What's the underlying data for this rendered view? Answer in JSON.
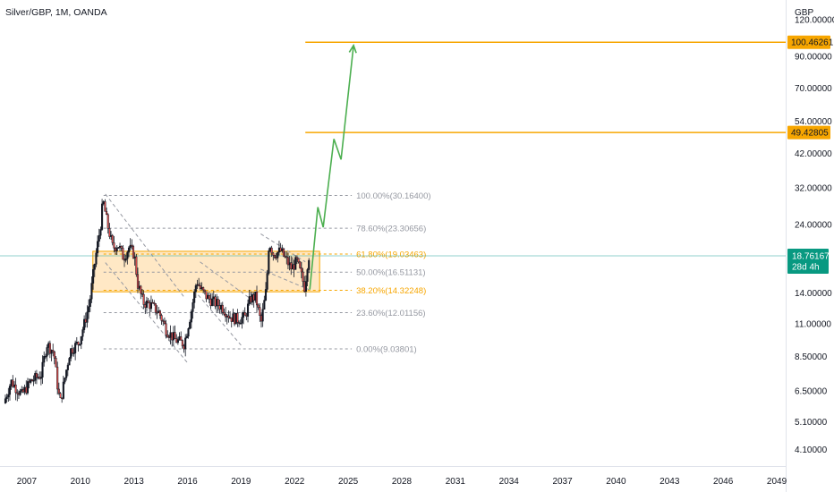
{
  "header": {
    "title": "Silver/GBP, 1M, OANDA"
  },
  "colors": {
    "up": "#26a69a",
    "down": "#ef5350",
    "wick": "#131722",
    "fib_gray": "#9598a1",
    "fib_orange": "#f7a600",
    "zone_fill": "#ffe0b2",
    "zone_border": "#f7a600",
    "target_line": "#f7a600",
    "projection": "#4caf50",
    "price_tag_bg": "#089981",
    "channel": "#9598a1"
  },
  "chart_data": {
    "type": "candlestick",
    "title": "Silver/GBP, 1M, OANDA",
    "y_axis": {
      "currency_label": "GBP",
      "scale": "log",
      "range": [
        3.6,
        140
      ],
      "ticks": [
        "120.00000",
        "90.00000",
        "70.00000",
        "54.00000",
        "42.00000",
        "32.00000",
        "24.00000",
        "18.76167",
        "14.00000",
        "11.00000",
        "8.50000",
        "6.50000",
        "5.10000",
        "4.10000"
      ],
      "tick_values": [
        120,
        90,
        70,
        54,
        42,
        32,
        24,
        18.76167,
        14,
        11,
        8.5,
        6.5,
        5.1,
        4.1
      ]
    },
    "x_axis": {
      "range": [
        2005.5,
        2049.5
      ],
      "ticks": [
        "2007",
        "2010",
        "2013",
        "2016",
        "2019",
        "2022",
        "2025",
        "2028",
        "2031",
        "2034",
        "2037",
        "2040",
        "2043",
        "2046",
        "2049"
      ],
      "tick_values": [
        2007,
        2010,
        2013,
        2016,
        2019,
        2022,
        2025,
        2028,
        2031,
        2034,
        2037,
        2040,
        2043,
        2046,
        2049
      ]
    },
    "current_price": {
      "value": 18.76167,
      "label": "18.76167",
      "countdown": "28d 4h"
    },
    "fib_levels": [
      {
        "label": "100.00%(30.16400)",
        "value": 30.164,
        "style": "gray"
      },
      {
        "label": "78.60%(23.30656)",
        "value": 23.30656,
        "style": "gray"
      },
      {
        "label": "61.80%(19.03463)",
        "value": 19.03463,
        "style": "orange"
      },
      {
        "label": "50.00%(16.51131)",
        "value": 16.51131,
        "style": "gray"
      },
      {
        "label": "38.20%(14.32248)",
        "value": 14.32248,
        "style": "orange"
      },
      {
        "label": "23.60%(12.01156)",
        "value": 12.01156,
        "style": "gray"
      },
      {
        "label": "0.00%(9.03801)",
        "value": 9.03801,
        "style": "gray"
      }
    ],
    "fib_x_range": [
      2011.3,
      2025.2
    ],
    "zone": {
      "x_range": [
        2010.7,
        2023.4
      ],
      "y_range": [
        14.15,
        19.45
      ]
    },
    "targets": [
      {
        "value": 100.46261,
        "label": "100.46261",
        "x_start": 2022.6
      },
      {
        "value": 49.42805,
        "label": "49.42805",
        "x_start": 2022.6
      }
    ],
    "projection_path": [
      [
        2022.85,
        14.4
      ],
      [
        2023.3,
        27.5
      ],
      [
        2023.6,
        23.5
      ],
      [
        2024.2,
        47.0
      ],
      [
        2024.6,
        40.0
      ],
      [
        2025.3,
        98.0
      ]
    ],
    "channels": [
      {
        "upper": [
          [
            2011.4,
            30.5
          ],
          [
            2015.8,
            13.6
          ]
        ],
        "lower": [
          [
            2011.4,
            17.8
          ],
          [
            2016.0,
            8.1
          ]
        ]
      },
      {
        "upper": [
          [
            2016.7,
            17.9
          ],
          [
            2019.6,
            13.3
          ]
        ],
        "lower": [
          [
            2016.6,
            13.8
          ],
          [
            2019.0,
            9.3
          ]
        ]
      },
      {
        "upper": [
          [
            2020.1,
            22.3
          ],
          [
            2022.6,
            17.9
          ]
        ],
        "lower": [
          [
            2020.1,
            16.9
          ],
          [
            2022.8,
            14.4
          ]
        ]
      }
    ],
    "anchors": [
      [
        2005.8,
        5.9
      ],
      [
        2006.2,
        7.0
      ],
      [
        2006.8,
        6.3
      ],
      [
        2007.3,
        7.0
      ],
      [
        2007.9,
        7.4
      ],
      [
        2008.2,
        9.4
      ],
      [
        2008.6,
        8.8
      ],
      [
        2008.8,
        6.8
      ],
      [
        2008.95,
        5.9
      ],
      [
        2009.5,
        8.9
      ],
      [
        2010.0,
        9.5
      ],
      [
        2010.3,
        11.0
      ],
      [
        2010.6,
        13.0
      ],
      [
        2010.9,
        18.0
      ],
      [
        2011.2,
        23.5
      ],
      [
        2011.35,
        29.0
      ],
      [
        2011.6,
        24.0
      ],
      [
        2011.9,
        20.0
      ],
      [
        2012.2,
        20.5
      ],
      [
        2012.5,
        18.5
      ],
      [
        2012.8,
        20.0
      ],
      [
        2013.1,
        19.0
      ],
      [
        2013.3,
        15.0
      ],
      [
        2013.6,
        13.0
      ],
      [
        2014.0,
        12.8
      ],
      [
        2014.5,
        12.0
      ],
      [
        2014.9,
        10.5
      ],
      [
        2015.4,
        9.7
      ],
      [
        2015.9,
        9.4
      ],
      [
        2016.3,
        12.2
      ],
      [
        2016.6,
        15.5
      ],
      [
        2016.8,
        14.5
      ],
      [
        2017.2,
        13.5
      ],
      [
        2017.6,
        13.0
      ],
      [
        2018.0,
        12.6
      ],
      [
        2018.5,
        11.6
      ],
      [
        2018.9,
        11.4
      ],
      [
        2019.3,
        11.6
      ],
      [
        2019.6,
        13.4
      ],
      [
        2019.9,
        13.6
      ],
      [
        2020.2,
        11.0
      ],
      [
        2020.5,
        14.5
      ],
      [
        2020.65,
        21.0
      ],
      [
        2020.9,
        19.0
      ],
      [
        2021.3,
        19.5
      ],
      [
        2021.6,
        18.2
      ],
      [
        2021.9,
        17.0
      ],
      [
        2022.2,
        18.0
      ],
      [
        2022.5,
        15.8
      ],
      [
        2022.65,
        14.6
      ],
      [
        2022.85,
        18.76
      ]
    ]
  }
}
